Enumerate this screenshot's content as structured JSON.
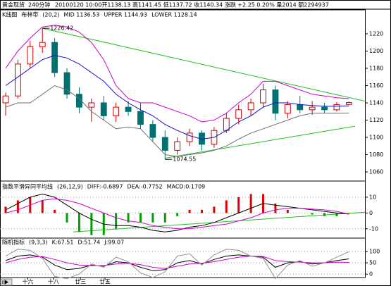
{
  "header": {
    "title": "黄金现货",
    "period": "240分钟",
    "quote": "20100120 10:00开1138.13 高1141.45 低1137.72 收1140.34 涨跌 +2.25 0.20% 量2014 额2294937"
  },
  "chart_data": [
    {
      "type": "candlestick",
      "title": "K线图",
      "subtitle": "布林带",
      "params": "(20,2)",
      "xlim": [
        -0.46,
        29.3
      ],
      "ylim": [
        1052.7,
        1236.3
      ],
      "yticks": [
        1060,
        1080,
        1100,
        1120,
        1140,
        1160,
        1180,
        1200,
        1220
      ],
      "up_color": "#d00000",
      "down_color": "#007070",
      "open": [
        1140,
        1148,
        1185,
        1205,
        1210,
        1175,
        1150,
        1135,
        1140,
        1125,
        1135,
        1130,
        1115,
        1100,
        1085,
        1095,
        1105,
        1092,
        1108,
        1122,
        1132,
        1140,
        1155,
        1128,
        1138,
        1132,
        1135,
        1132,
        1138.13
      ],
      "high": [
        1152,
        1190,
        1212,
        1226.42,
        1215,
        1180,
        1158,
        1145,
        1148,
        1140,
        1142,
        1140,
        1120,
        1108,
        1100,
        1110,
        1108,
        1112,
        1128,
        1138,
        1145,
        1162,
        1160,
        1142,
        1148,
        1142,
        1140,
        1141,
        1141.45
      ],
      "low": [
        1125,
        1145,
        1180,
        1198,
        1170,
        1145,
        1128,
        1118,
        1120,
        1118,
        1125,
        1110,
        1095,
        1074.55,
        1080,
        1090,
        1085,
        1088,
        1105,
        1115,
        1125,
        1135,
        1120,
        1122,
        1128,
        1126,
        1128,
        1130,
        1137.72
      ],
      "close": [
        1148,
        1185,
        1205,
        1210,
        1175,
        1150,
        1135,
        1140,
        1125,
        1135,
        1130,
        1115,
        1100,
        1085,
        1095,
        1105,
        1092,
        1108,
        1122,
        1132,
        1140,
        1155,
        1128,
        1138,
        1132,
        1135,
        1132,
        1138,
        1140.34
      ],
      "series": [
        {
          "name": "MID 1136.53",
          "color": "#1010d0",
          "values": [
            1160,
            1170,
            1180,
            1190,
            1195,
            1192,
            1185,
            1175,
            1165,
            1150,
            1140,
            1132,
            1125,
            1115,
            1108,
            1102,
            1098,
            1100,
            1108,
            1118,
            1125,
            1135,
            1140,
            1140,
            1138,
            1137,
            1136,
            1136,
            1136.53
          ]
        },
        {
          "name": "UPPER 1144.93",
          "color": "#d000d0",
          "values": [
            1180,
            1200,
            1215,
            1228,
            1230,
            1228,
            1222,
            1210,
            1190,
            1160,
            1145,
            1140,
            1140,
            1135,
            1130,
            1125,
            1118,
            1120,
            1128,
            1140,
            1150,
            1165,
            1165,
            1160,
            1155,
            1150,
            1148,
            1146,
            1144.93
          ]
        },
        {
          "name": "LOWER 1128.14",
          "color": "#707070",
          "values": [
            1135,
            1140,
            1140,
            1150,
            1160,
            1155,
            1145,
            1130,
            1120,
            1110,
            1112,
            1110,
            1095,
            1080,
            1078,
            1080,
            1082,
            1085,
            1090,
            1098,
            1105,
            1110,
            1115,
            1120,
            1125,
            1128,
            1128,
            1128,
            1128.14
          ]
        }
      ],
      "trendlines": [
        [
          [
            3,
            1226.42
          ],
          [
            29.3,
            1142
          ]
        ],
        [
          [
            13,
            1076
          ],
          [
            28.5,
            1113
          ]
        ]
      ],
      "trend_color": "#20c020",
      "annotations": [
        {
          "value": 1226.42,
          "label": "1226.42",
          "index": 3
        },
        {
          "value": 1074.55,
          "label": "1074.55",
          "index": 13
        }
      ]
    },
    {
      "type": "line",
      "title": "指数平滑异同平均线",
      "params": "(26,12,9)",
      "xlim": [
        -0.46,
        29.3
      ],
      "ylim": [
        -15,
        18
      ],
      "yticks": [
        -10,
        0,
        10
      ],
      "grid": true,
      "series": [
        {
          "name": "DIFF:-0.6897",
          "color": "#000000",
          "values": [
            2,
            6,
            10,
            12,
            10,
            5,
            0,
            -4,
            -7,
            -8,
            -8,
            -9,
            -11,
            -12,
            -11,
            -9,
            -8,
            -6,
            -3,
            0,
            3,
            6,
            5,
            4,
            3,
            2,
            1,
            0,
            -0.6897
          ]
        },
        {
          "name": "DEA:-0.7752",
          "color": "#d000d0",
          "values": [
            0,
            2,
            5,
            8,
            9,
            8,
            6,
            3,
            0,
            -3,
            -5,
            -6,
            -8,
            -9,
            -10,
            -10,
            -9,
            -8,
            -7,
            -5,
            -3,
            0,
            2,
            3,
            3,
            2.5,
            2,
            1,
            -0.7752
          ]
        },
        {
          "name": "MACD:0.1709",
          "style": "bar",
          "color": "#e00000",
          "neg_color": "#00a000",
          "values": [
            4,
            8,
            10,
            8,
            2,
            -6,
            -12,
            -14,
            -14,
            -10,
            -6,
            -6,
            -6,
            -6,
            -2,
            2,
            2,
            4,
            8,
            10,
            12,
            12,
            6,
            2,
            0,
            -1,
            -2,
            -2,
            0.1709
          ]
        }
      ],
      "trendlines": [
        [
          [
            5.5,
            -12
          ],
          [
            29.3,
            0.5
          ]
        ]
      ],
      "trend_color": "#20c020"
    },
    {
      "type": "line",
      "title": "随机指标",
      "params": "(9,3,3)",
      "xlim": [
        -0.46,
        29.3
      ],
      "ylim": [
        -12,
        150
      ],
      "yticks": [
        0,
        50,
        100
      ],
      "grid": true,
      "xticks": [
        {
          "value": 1.8,
          "label": "十六"
        },
        {
          "value": 3.9,
          "label": "十八"
        },
        {
          "value": 6.1,
          "label": "廿三"
        },
        {
          "value": 8.1,
          "label": "廿五"
        }
      ],
      "series": [
        {
          "name": "K:67.51",
          "color": "#000000",
          "values": [
            60,
            80,
            85,
            75,
            40,
            20,
            25,
            40,
            35,
            55,
            50,
            30,
            15,
            20,
            50,
            60,
            45,
            65,
            80,
            85,
            80,
            75,
            30,
            50,
            55,
            45,
            50,
            60,
            67.51
          ]
        },
        {
          "name": "D:51.74",
          "color": "#d000d0",
          "values": [
            50,
            65,
            75,
            78,
            65,
            50,
            40,
            38,
            38,
            45,
            48,
            42,
            30,
            25,
            35,
            45,
            48,
            55,
            65,
            75,
            80,
            78,
            60,
            55,
            53,
            50,
            50,
            53,
            51.74
          ]
        },
        {
          "name": "J:99.07",
          "color": "#909090",
          "values": [
            80,
            110,
            105,
            70,
            -10,
            -20,
            0,
            45,
            30,
            75,
            55,
            5,
            -15,
            10,
            80,
            90,
            40,
            85,
            110,
            105,
            80,
            70,
            -20,
            40,
            60,
            35,
            50,
            75,
            99.07
          ]
        }
      ]
    }
  ]
}
